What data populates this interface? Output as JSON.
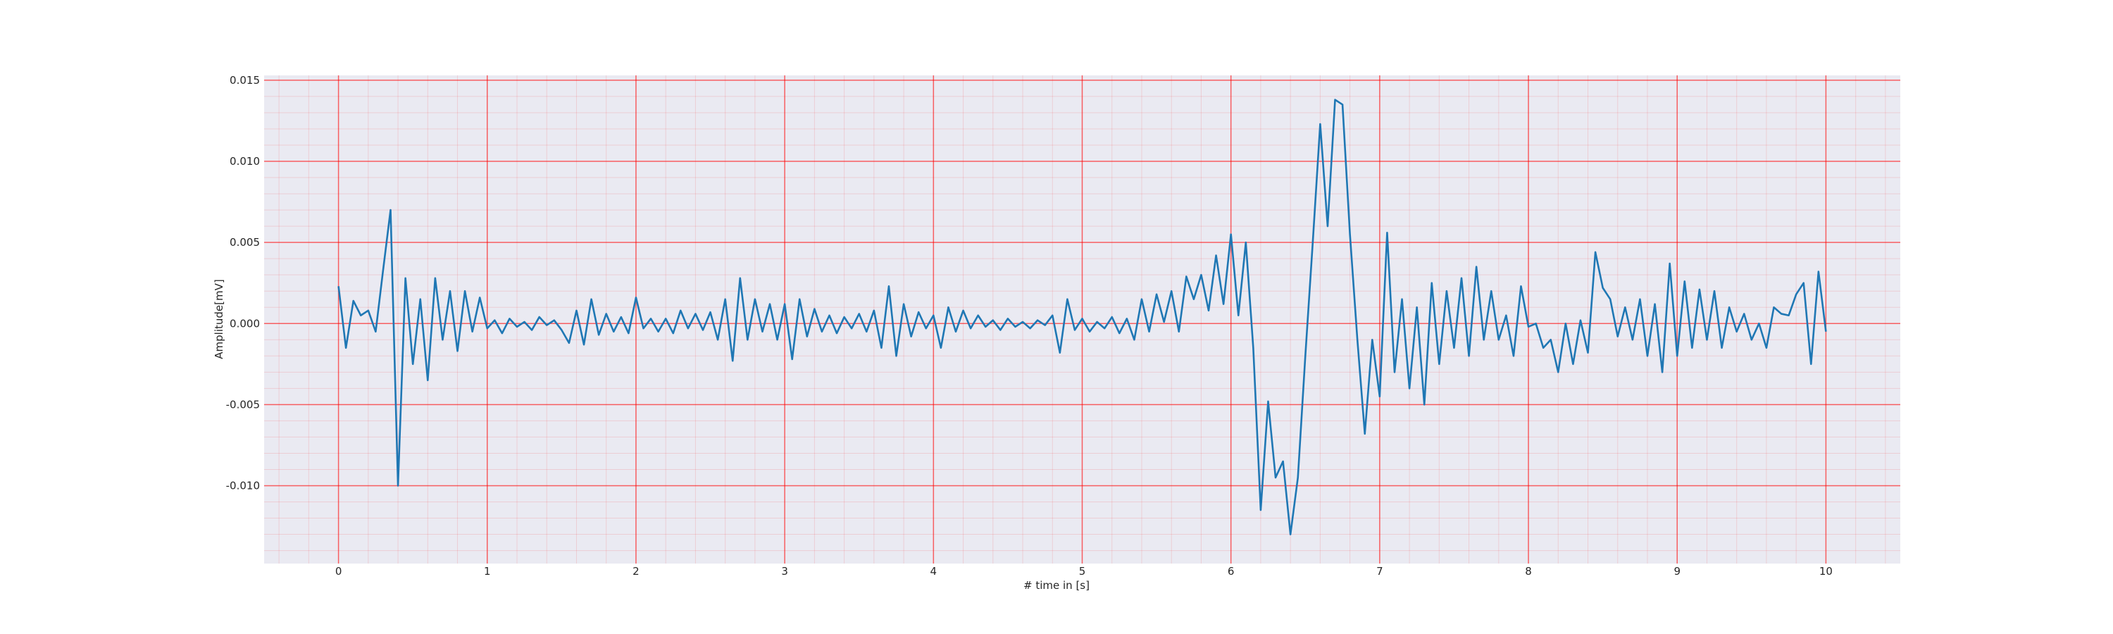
{
  "chart_data": {
    "type": "line",
    "xlabel": "# time in [s]",
    "ylabel": "Amplitude[mV]",
    "xlim": [
      -0.5,
      10.5
    ],
    "ylim": [
      -0.0148,
      0.0153
    ],
    "xticks": [
      0,
      1,
      2,
      3,
      4,
      5,
      6,
      7,
      8,
      9,
      10
    ],
    "yticks": [
      {
        "value": -0.01,
        "label": "-0.010"
      },
      {
        "value": -0.005,
        "label": "-0.005"
      },
      {
        "value": 0,
        "label": "0.000"
      },
      {
        "value": 0.005,
        "label": "0.005"
      },
      {
        "value": 0.01,
        "label": "0.010"
      },
      {
        "value": 0.015,
        "label": "0.015"
      }
    ],
    "grid": true,
    "grid_color": "#ff0000",
    "minor_grid": true,
    "minor_divisions": 5,
    "background": "#eaeaf2",
    "series": [
      {
        "color": "#1f77b4",
        "x": [
          0,
          0.05,
          0.1,
          0.15,
          0.2,
          0.25,
          0.3,
          0.35,
          0.4,
          0.45,
          0.5,
          0.55,
          0.6,
          0.65,
          0.7,
          0.75,
          0.8,
          0.85,
          0.9,
          0.95,
          1,
          1.05,
          1.1,
          1.15,
          1.2,
          1.25,
          1.3,
          1.35,
          1.4,
          1.45,
          1.5,
          1.55,
          1.6,
          1.65,
          1.7,
          1.75,
          1.8,
          1.85,
          1.9,
          1.95,
          2,
          2.05,
          2.1,
          2.15,
          2.2,
          2.25,
          2.3,
          2.35,
          2.4,
          2.45,
          2.5,
          2.55,
          2.6,
          2.65,
          2.7,
          2.75,
          2.8,
          2.85,
          2.9,
          2.95,
          3,
          3.05,
          3.1,
          3.15,
          3.2,
          3.25,
          3.3,
          3.35,
          3.4,
          3.45,
          3.5,
          3.55,
          3.6,
          3.65,
          3.7,
          3.75,
          3.8,
          3.85,
          3.9,
          3.95,
          4,
          4.05,
          4.1,
          4.15,
          4.2,
          4.25,
          4.3,
          4.35,
          4.4,
          4.45,
          4.5,
          4.55,
          4.6,
          4.65,
          4.7,
          4.75,
          4.8,
          4.85,
          4.9,
          4.95,
          5,
          5.05,
          5.1,
          5.15,
          5.2,
          5.25,
          5.3,
          5.35,
          5.4,
          5.45,
          5.5,
          5.55,
          5.6,
          5.65,
          5.7,
          5.75,
          5.8,
          5.85,
          5.9,
          5.95,
          6,
          6.05,
          6.1,
          6.15,
          6.2,
          6.25,
          6.3,
          6.35,
          6.4,
          6.45,
          6.5,
          6.55,
          6.6,
          6.65,
          6.7,
          6.75,
          6.8,
          6.85,
          6.9,
          6.95,
          7,
          7.05,
          7.1,
          7.15,
          7.2,
          7.25,
          7.3,
          7.35,
          7.4,
          7.45,
          7.5,
          7.55,
          7.6,
          7.65,
          7.7,
          7.75,
          7.8,
          7.85,
          7.9,
          7.95,
          8,
          8.05,
          8.1,
          8.15,
          8.2,
          8.25,
          8.3,
          8.35,
          8.4,
          8.45,
          8.5,
          8.55,
          8.6,
          8.65,
          8.7,
          8.75,
          8.8,
          8.85,
          8.9,
          8.95,
          9,
          9.05,
          9.1,
          9.15,
          9.2,
          9.25,
          9.3,
          9.35,
          9.4,
          9.45,
          9.5,
          9.55,
          9.6,
          9.65,
          9.7,
          9.75,
          9.8,
          9.85,
          9.9,
          9.95,
          10
        ],
        "values": [
          0.0023,
          -0.0015,
          0.0014,
          0.0005,
          0.0008,
          -0.0005,
          0.0033,
          0.007,
          -0.01,
          0.0028,
          -0.0025,
          0.0015,
          -0.0035,
          0.0028,
          -0.001,
          0.002,
          -0.0017,
          0.002,
          -0.0005,
          0.0016,
          -0.0003,
          0.0002,
          -0.0006,
          0.0003,
          -0.0002,
          0.0001,
          -0.0004,
          0.0004,
          -0.0001,
          0.0002,
          -0.0004,
          -0.0012,
          0.0008,
          -0.0013,
          0.0015,
          -0.0007,
          0.0006,
          -0.0005,
          0.0004,
          -0.0006,
          0.0016,
          -0.0003,
          0.0003,
          -0.0005,
          0.0003,
          -0.0006,
          0.0008,
          -0.0003,
          0.0006,
          -0.0004,
          0.0007,
          -0.001,
          0.0015,
          -0.0023,
          0.0028,
          -0.001,
          0.0015,
          -0.0005,
          0.0012,
          -0.001,
          0.0012,
          -0.0022,
          0.0015,
          -0.0008,
          0.0009,
          -0.0005,
          0.0005,
          -0.0006,
          0.0004,
          -0.0003,
          0.0006,
          -0.0005,
          0.0008,
          -0.0015,
          0.0023,
          -0.002,
          0.0012,
          -0.0008,
          0.0007,
          -0.0003,
          0.0005,
          -0.0015,
          0.001,
          -0.0005,
          0.0008,
          -0.0003,
          0.0005,
          -0.0002,
          0.0002,
          -0.0004,
          0.0003,
          -0.0002,
          0.0001,
          -0.0003,
          0.0002,
          -0.0001,
          0.0005,
          -0.0018,
          0.0015,
          -0.0004,
          0.0003,
          -0.0005,
          0.0001,
          -0.0003,
          0.0004,
          -0.0006,
          0.0003,
          -0.001,
          0.0015,
          -0.0005,
          0.0018,
          0.0001,
          0.002,
          -0.0005,
          0.0029,
          0.0015,
          0.003,
          0.0008,
          0.0042,
          0.0012,
          0.0055,
          0.0005,
          0.005,
          -0.0015,
          -0.0115,
          -0.0048,
          -0.0095,
          -0.0085,
          -0.013,
          -0.0095,
          -0.002,
          0.005,
          0.0123,
          0.006,
          0.0138,
          0.0135,
          0.0055,
          -0.001,
          -0.0068,
          -0.001,
          -0.0045,
          0.0056,
          -0.003,
          0.0015,
          -0.004,
          0.001,
          -0.005,
          0.0025,
          -0.0025,
          0.002,
          -0.0015,
          0.0028,
          -0.002,
          0.0035,
          -0.001,
          0.002,
          -0.001,
          0.0005,
          -0.002,
          0.0023,
          -0.0002,
          0,
          -0.0015,
          -0.001,
          -0.003,
          0,
          -0.0025,
          0.0002,
          -0.0018,
          0.0044,
          0.0022,
          0.0015,
          -0.0008,
          0.001,
          -0.001,
          0.0015,
          -0.002,
          0.0012,
          -0.003,
          0.0037,
          -0.002,
          0.0026,
          -0.0015,
          0.0021,
          -0.001,
          0.002,
          -0.0015,
          0.001,
          -0.0005,
          0.0006,
          -0.001,
          0,
          -0.0015,
          0.001,
          0.0006,
          0.0005,
          0.0018,
          0.0025,
          -0.0025,
          0.0032,
          -0.0005
        ]
      }
    ]
  }
}
